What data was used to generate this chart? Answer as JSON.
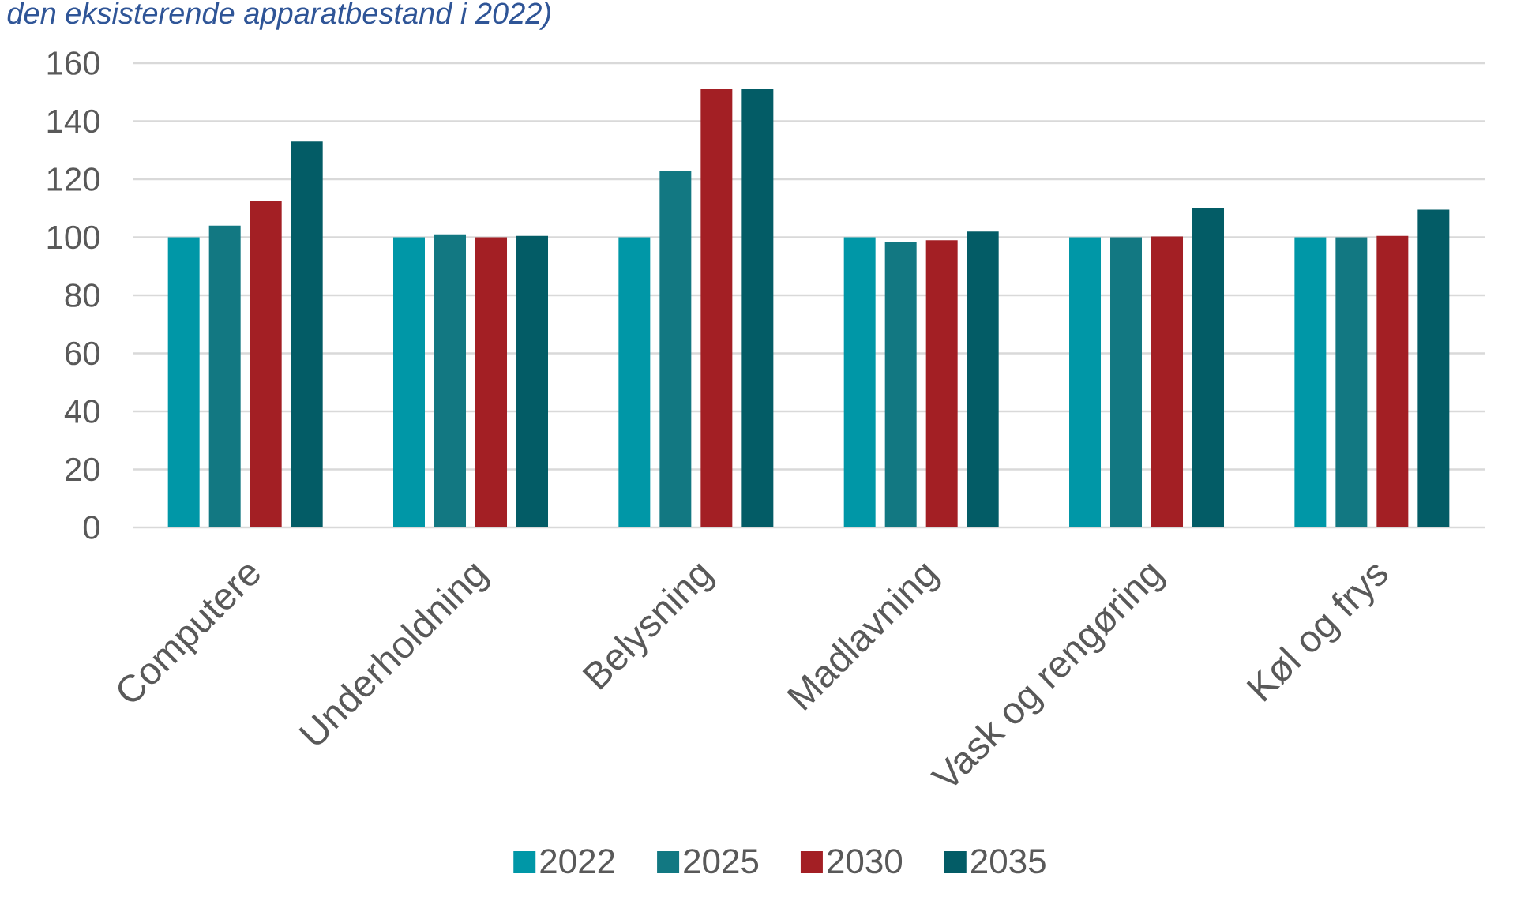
{
  "chart_data": {
    "type": "bar",
    "title": "*den eksisterende apparatbestand i 2022)*",
    "categories": [
      "Computere",
      "Underholdning",
      "Belysning",
      "Madlavning",
      "Vask og rengøring",
      "Køl og frys"
    ],
    "series": [
      {
        "name": "2022",
        "color": "#0097a7",
        "values": [
          100,
          100,
          100,
          100,
          100,
          100
        ]
      },
      {
        "name": "2025",
        "color": "#127882",
        "values": [
          104,
          101,
          123,
          98.5,
          100,
          100
        ]
      },
      {
        "name": "2030",
        "color": "#a31f24",
        "values": [
          112.5,
          100,
          151,
          99,
          100.3,
          100.5
        ]
      },
      {
        "name": "2035",
        "color": "#035c66",
        "values": [
          133,
          100.5,
          151,
          102,
          110,
          109.5
        ]
      }
    ],
    "ylim": [
      0,
      160
    ],
    "yticks": [
      0,
      20,
      40,
      60,
      80,
      100,
      120,
      140,
      160
    ],
    "grid": "y",
    "legend": "bottom"
  }
}
